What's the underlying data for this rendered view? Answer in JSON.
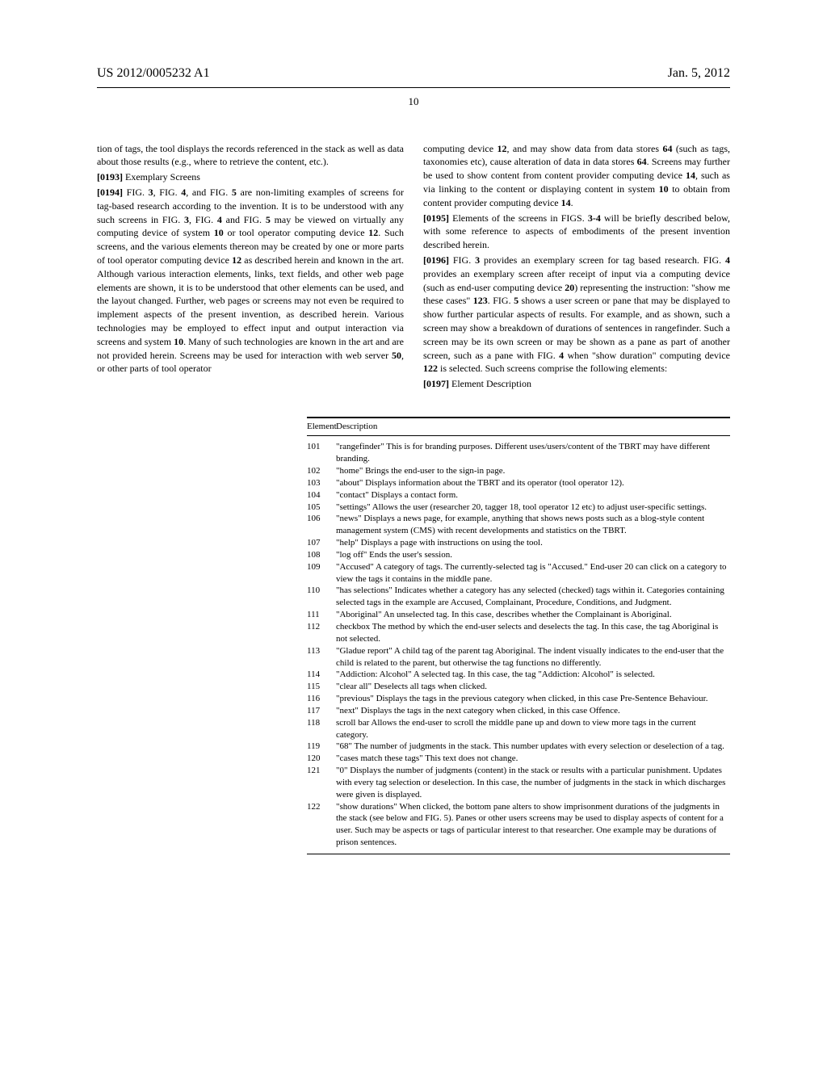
{
  "header": {
    "pub_number": "US 2012/0005232 A1",
    "pub_date": "Jan. 5, 2012",
    "page_number": "10"
  },
  "left_col": {
    "intro": "tion of tags, the tool displays the records referenced in the stack as well as data about those results (e.g., where to retrieve the content, etc.).",
    "p0193_num": "[0193]",
    "p0193": "    Exemplary Screens",
    "p0194_num": "[0194]",
    "p0194": "    FIG. 3, FIG. 4, and FIG. 5 are non-limiting examples of screens for tag-based research according to the invention. It is to be understood with any such screens in FIG. 3, FIG. 4 and FIG. 5 may be viewed on virtually any computing device of system 10 or tool operator computing device 12. Such screens, and the various elements thereon may be created by one or more parts of tool operator computing device 12 as described herein and known in the art. Although various interaction elements, links, text fields, and other web page elements are shown, it is to be understood that other elements can be used, and the layout changed. Further, web pages or screens may not even be required to implement aspects of the present invention, as described herein. Various technologies may be employed to effect input and output interaction via screens and system 10. Many of such technologies are known in the art and are not provided herein. Screens may be used for interaction with web server 50, or other parts of tool operator"
  },
  "right_col": {
    "cont": "computing device 12, and may show data from data stores 64 (such as tags, taxonomies etc), cause alteration of data in data stores 64. Screens may further be used to show content from content provider computing device 14, such as via linking to the content or displaying content in system 10 to obtain from content provider computing device 14.",
    "p0195_num": "[0195]",
    "p0195": "    Elements of the screens in FIGS. 3-4 will be briefly described below, with some reference to aspects of embodiments of the present invention described herein.",
    "p0196_num": "[0196]",
    "p0196": "    FIG. 3 provides an exemplary screen for tag based research. FIG. 4 provides an exemplary screen after receipt of input via a computing device (such as end-user computing device 20) representing the instruction: \"show me these cases\" 123. FIG. 5 shows a user screen or pane that may be displayed to show further particular aspects of results. For example, and as shown, such a screen may show a breakdown of durations of sentences in rangefinder. Such a screen may be its own screen or may be shown as a pane as part of another screen, such as a pane with FIG. 4 when \"show duration\" computing device 122 is selected. Such screens comprise the following elements:",
    "p0197_num": "[0197]",
    "p0197": "    Element Description"
  },
  "table": {
    "header": {
      "col1": "Element",
      "col2": "Description"
    },
    "rows": [
      {
        "num": "101",
        "desc": "\"rangefinder\" This is for branding purposes. Different uses/users/content of the TBRT may have different branding."
      },
      {
        "num": "102",
        "desc": "\"home\" Brings the end-user to the sign-in page."
      },
      {
        "num": "103",
        "desc": "\"about\" Displays information about the TBRT and its operator (tool operator 12)."
      },
      {
        "num": "104",
        "desc": "\"contact\" Displays a contact form."
      },
      {
        "num": "105",
        "desc": "\"settings\" Allows the user (researcher 20, tagger 18, tool operator 12 etc) to adjust user-specific settings."
      },
      {
        "num": "106",
        "desc": "\"news\" Displays a news page, for example, anything that shows news posts such as a blog-style content management system (CMS) with recent developments and statistics on the TBRT."
      },
      {
        "num": "107",
        "desc": "\"help\" Displays a page with instructions on using the tool."
      },
      {
        "num": "108",
        "desc": "\"log off\" Ends the user's session."
      },
      {
        "num": "109",
        "desc": "\"Accused\" A category of tags. The currently-selected tag is \"Accused.\" End-user 20 can click on a category to view the tags it contains in the middle pane."
      },
      {
        "num": "110",
        "desc": "\"has selections\" Indicates whether a category has any selected (checked) tags within it. Categories containing selected tags in the example are Accused, Complainant, Procedure, Conditions, and Judgment."
      },
      {
        "num": "111",
        "desc": "\"Aboriginal\" An unselected tag. In this case, describes whether the Complainant is Aboriginal."
      },
      {
        "num": "112",
        "desc": "checkbox The method by which the end-user selects and deselects the tag. In this case, the tag Aboriginal is not selected."
      },
      {
        "num": "113",
        "desc": "\"Gladue report\" A child tag of the parent tag Aboriginal. The indent visually indicates to the end-user that the child is related to the parent, but otherwise the tag functions no differently."
      },
      {
        "num": "114",
        "desc": "\"Addiction: Alcohol\" A selected tag. In this case, the tag \"Addiction: Alcohol\" is selected."
      },
      {
        "num": "115",
        "desc": "\"clear all\" Deselects all tags when clicked."
      },
      {
        "num": "116",
        "desc": "\"previous\" Displays the tags in the previous category when clicked, in this case Pre-Sentence Behaviour."
      },
      {
        "num": "117",
        "desc": "\"next\" Displays the tags in the next category when clicked, in this case Offence."
      },
      {
        "num": "118",
        "desc": "scroll bar Allows the end-user to scroll the middle pane up and down to view more tags in the current category."
      },
      {
        "num": "119",
        "desc": "\"68\" The number of judgments in the stack. This number updates with every selection or deselection of a tag."
      },
      {
        "num": "120",
        "desc": "\"cases match these tags\" This text does not change."
      },
      {
        "num": "121",
        "desc": "\"0\" Displays the number of judgments (content) in the stack or results with a particular punishment. Updates with every tag selection or deselection. In this case, the number of judgments in the stack in which discharges were given is displayed."
      },
      {
        "num": "122",
        "desc": "\"show durations\" When clicked, the bottom pane alters to show imprisonment durations of the judgments in the stack (see below and FIG. 5). Panes or other users screens may be used to display aspects of content for a user. Such may be aspects or tags of particular interest to that researcher. One example may be durations of prison sentences."
      }
    ]
  }
}
